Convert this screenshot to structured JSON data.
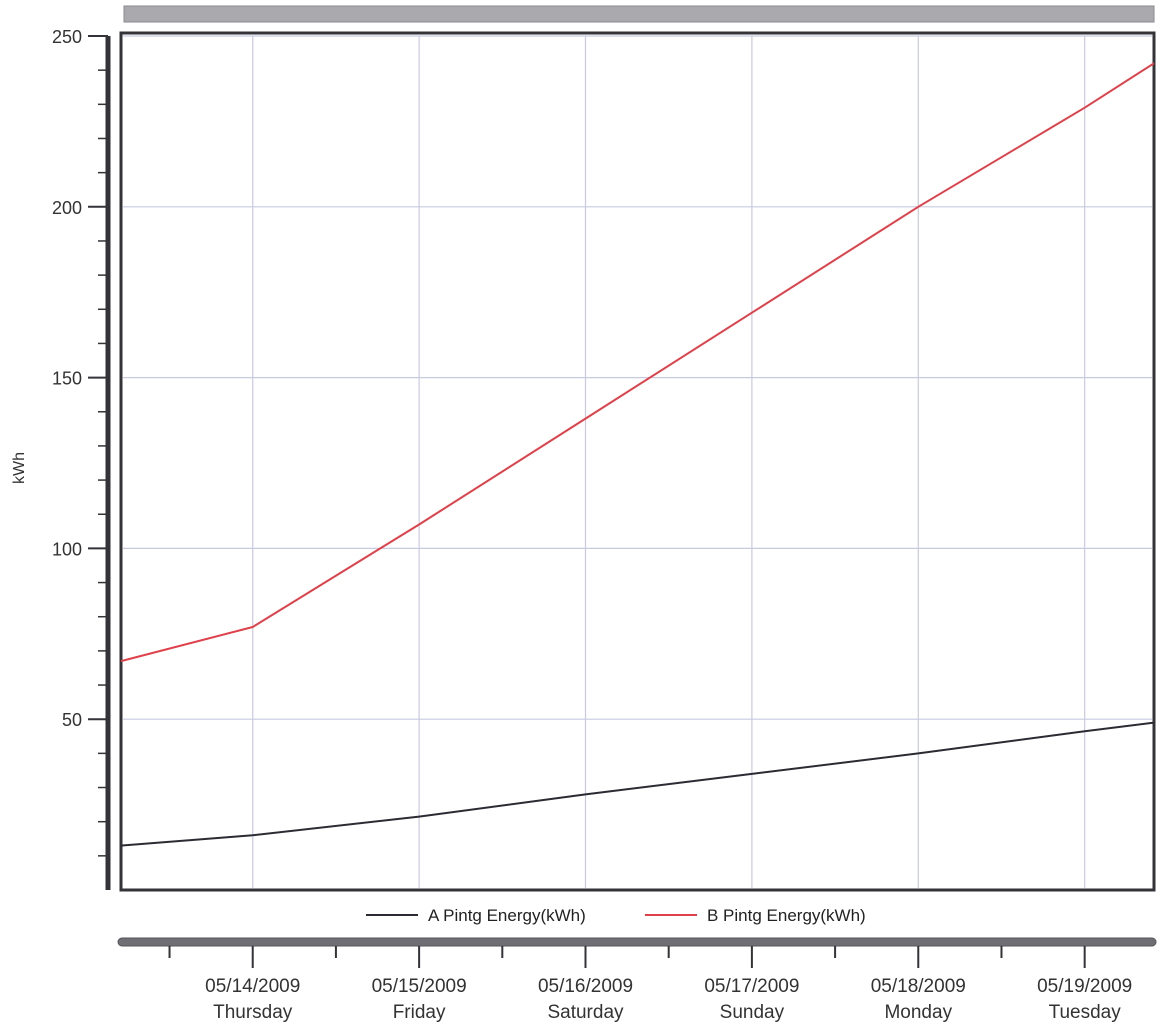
{
  "chart_data": {
    "type": "line",
    "ylabel": "kWh",
    "ylim": [
      0,
      250
    ],
    "y_ticks": [
      50,
      100,
      150,
      200,
      250
    ],
    "x_range": [
      "05/13/2009 17:00",
      "05/19/2009 22:00"
    ],
    "x_ticks": [
      {
        "date": "05/14/2009",
        "day": "Thursday",
        "value": "05/14/2009 12:00"
      },
      {
        "date": "05/15/2009",
        "day": "Friday",
        "value": "05/15/2009 12:00"
      },
      {
        "date": "05/16/2009",
        "day": "Saturday",
        "value": "05/16/2009 12:00"
      },
      {
        "date": "05/17/2009",
        "day": "Sunday",
        "value": "05/17/2009 12:00"
      },
      {
        "date": "05/18/2009",
        "day": "Monday",
        "value": "05/18/2009 12:00"
      },
      {
        "date": "05/19/2009",
        "day": "Tuesday",
        "value": "05/19/2009 12:00"
      }
    ],
    "grid": true,
    "legend_position": "bottom-center",
    "series": [
      {
        "name": "A Pintg Energy(kWh)",
        "color": "#2b2b33",
        "points": [
          {
            "x": "05/13/2009 17:00",
            "y": 13
          },
          {
            "x": "05/14/2009 12:00",
            "y": 16
          },
          {
            "x": "05/15/2009 12:00",
            "y": 21.5
          },
          {
            "x": "05/16/2009 12:00",
            "y": 28
          },
          {
            "x": "05/17/2009 12:00",
            "y": 34
          },
          {
            "x": "05/18/2009 12:00",
            "y": 40
          },
          {
            "x": "05/19/2009 12:00",
            "y": 46.5
          },
          {
            "x": "05/19/2009 22:00",
            "y": 49
          }
        ]
      },
      {
        "name": "B Pintg Energy(kWh)",
        "color": "#e0404a",
        "points": [
          {
            "x": "05/13/2009 17:00",
            "y": 67
          },
          {
            "x": "05/14/2009 12:00",
            "y": 77
          },
          {
            "x": "05/15/2009 12:00",
            "y": 107
          },
          {
            "x": "05/16/2009 12:00",
            "y": 138
          },
          {
            "x": "05/17/2009 12:00",
            "y": 169
          },
          {
            "x": "05/18/2009 12:00",
            "y": 200
          },
          {
            "x": "05/19/2009 12:00",
            "y": 229
          },
          {
            "x": "05/19/2009 22:00",
            "y": 242
          }
        ]
      }
    ]
  }
}
